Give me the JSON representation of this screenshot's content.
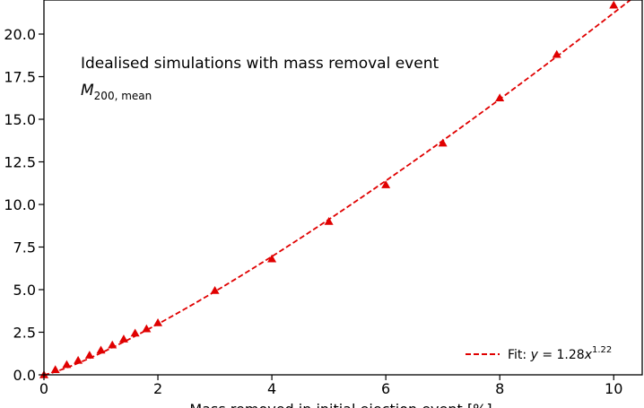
{
  "chart_data": {
    "type": "scatter",
    "title": "",
    "xlabel": "Mass removed in initial ejection event [%]",
    "ylabel": "",
    "xlim": [
      0,
      10.5
    ],
    "ylim": [
      0,
      22
    ],
    "grid": false,
    "x_ticks": [
      0,
      2,
      4,
      6,
      8,
      10
    ],
    "x_tick_labels": [
      "0",
      "2",
      "4",
      "6",
      "8",
      "10"
    ],
    "y_ticks": [
      0,
      2.5,
      5,
      7.5,
      10,
      12.5,
      15,
      17.5,
      20
    ],
    "y_tick_labels": [
      "0.0",
      "2.5",
      "5.0",
      "7.5",
      "10.0",
      "12.5",
      "15.0",
      "17.5",
      "20.0"
    ],
    "annotation": {
      "line1": "Idealised simulations with mass removal event",
      "line2_main": "M",
      "line2_sub": "200, mean"
    },
    "series": [
      {
        "color": "#e00000",
        "marker": "triangle",
        "x": [
          0,
          0.2,
          0.4,
          0.6,
          0.8,
          1.0,
          1.2,
          1.4,
          1.6,
          1.8,
          2.0,
          3.0,
          4.0,
          5.0,
          6.0,
          7.0,
          8.0,
          9.0,
          10.0
        ],
        "y": [
          0.0,
          0.3,
          0.6,
          0.85,
          1.15,
          1.45,
          1.75,
          2.1,
          2.45,
          2.7,
          3.05,
          4.95,
          6.8,
          9.0,
          11.15,
          13.6,
          16.25,
          18.8,
          21.7
        ]
      }
    ],
    "fit": {
      "a": 1.28,
      "b": 1.22,
      "color": "#e00000",
      "style": "dashed",
      "legend_prefix": "Fit: ",
      "legend_y": "y",
      "legend_eq": " = 1.28",
      "legend_x": "x",
      "legend_exp": "1.22"
    },
    "legend_position": "bottom-right"
  }
}
